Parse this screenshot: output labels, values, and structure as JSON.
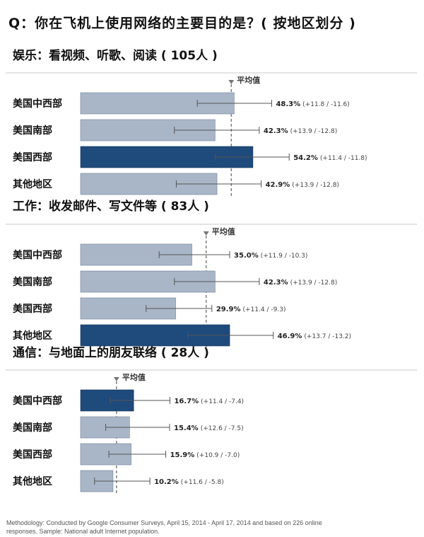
{
  "title": "Q：你在飞机上使用网络的主要目的是？( 按地区划分 )",
  "average_label": "平均值",
  "footer": "Methodology: Conducted by Google Consumer Surveys, April 15, 2014 - April 17, 2014 and based on 226 online responses. Sample: National adult Internet population.",
  "colors": {
    "bar": "#a9b6c8",
    "highlight": "#1f4a7c",
    "bar_edge": "#6f7f96",
    "error": "#555555",
    "average": "#777777"
  },
  "chart_data": [
    {
      "type": "bar",
      "orientation": "horizontal",
      "title": "娱乐：看视频、听歌、阅读 ( 105人 )",
      "average": 47.4,
      "categories": [
        "美国中西部",
        "美国南部",
        "美国西部",
        "其他地区"
      ],
      "values": [
        48.3,
        42.3,
        54.2,
        42.9
      ],
      "value_labels": [
        "48.3%",
        "42.3%",
        "54.2%",
        "42.9%"
      ],
      "error_plus": [
        11.8,
        13.9,
        11.4,
        13.9
      ],
      "error_minus": [
        11.6,
        12.8,
        11.8,
        12.8
      ],
      "error_labels": [
        "(+11.8 / -11.6)",
        "(+13.9 / -12.8)",
        "(+11.4 / -11.8)",
        "(+13.9 / -12.8)"
      ],
      "highlight_index": 2
    },
    {
      "type": "bar",
      "orientation": "horizontal",
      "title": "工作：收发邮件、写文件等 ( 83人 )",
      "average": 39.5,
      "categories": [
        "美国中西部",
        "美国南部",
        "美国西部",
        "其他地区"
      ],
      "values": [
        35.0,
        42.3,
        29.9,
        46.9
      ],
      "value_labels": [
        "35.0%",
        "42.3%",
        "29.9%",
        "46.9%"
      ],
      "error_plus": [
        11.9,
        13.9,
        11.4,
        13.7
      ],
      "error_minus": [
        10.3,
        12.8,
        9.3,
        13.2
      ],
      "error_labels": [
        "(+11.9 / -10.3)",
        "(+13.9 / -12.8)",
        "(+11.4 / -9.3)",
        "(+13.7 / -13.2)"
      ],
      "highlight_index": 3
    },
    {
      "type": "bar",
      "orientation": "horizontal",
      "title": "通信：与地面上的朋友联络 ( 28人 )",
      "average": 11.3,
      "categories": [
        "美国中西部",
        "美国南部",
        "美国西部",
        "其他地区"
      ],
      "values": [
        16.7,
        15.4,
        15.9,
        10.2
      ],
      "value_labels": [
        "16.7%",
        "15.4%",
        "15.9%",
        "10.2%"
      ],
      "error_plus": [
        11.4,
        12.6,
        10.9,
        11.6
      ],
      "error_minus": [
        7.4,
        7.5,
        7.0,
        5.8
      ],
      "error_labels": [
        "(+11.4 / -7.4)",
        "(+12.6 / -7.5)",
        "(+10.9 / -7.0)",
        "(+11.6 / -5.8)"
      ],
      "highlight_index": 0
    }
  ]
}
